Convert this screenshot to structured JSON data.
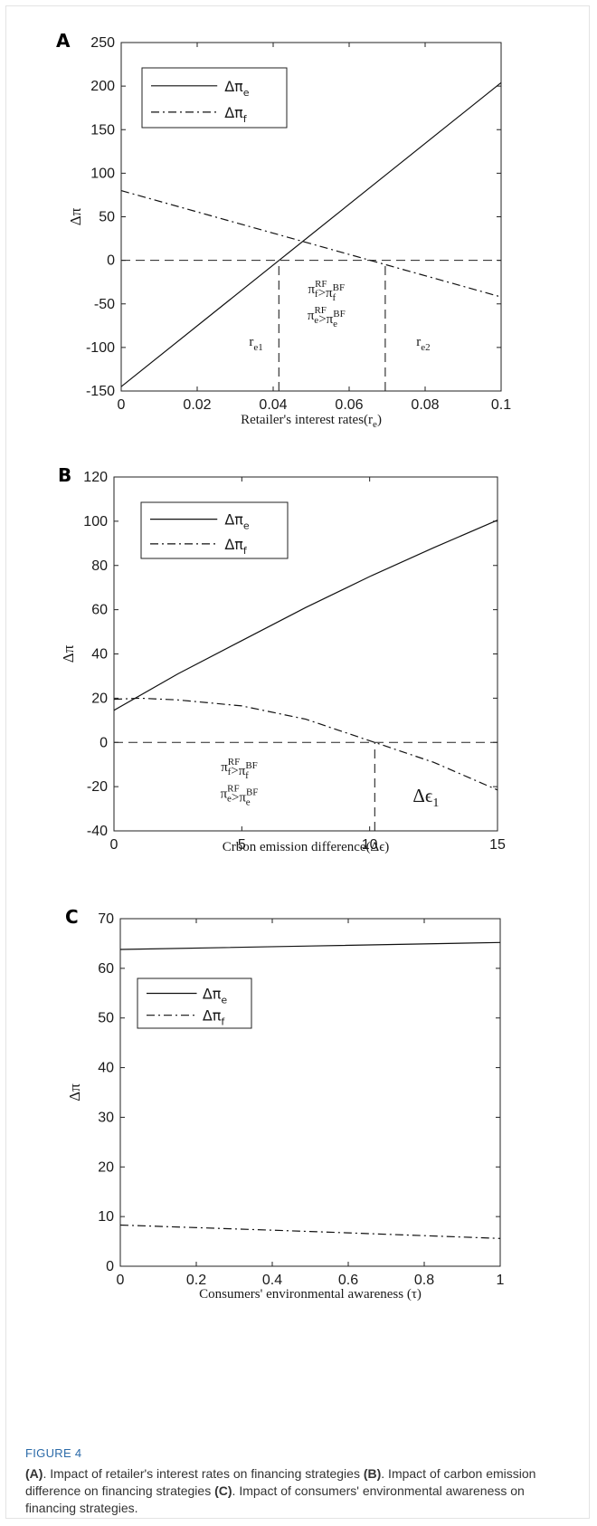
{
  "figure": {
    "label": "FIGURE 4",
    "caption_parts": [
      {
        "text": "(A)",
        "bold": true
      },
      {
        "text": ". Impact of retailer's interest rates on financing strategies ",
        "bold": false
      },
      {
        "text": "(B)",
        "bold": true
      },
      {
        "text": ". Impact of carbon emission difference on financing strategies ",
        "bold": false
      },
      {
        "text": "(C)",
        "bold": true
      },
      {
        "text": ". Impact of consumers' environmental awareness on financing strategies.",
        "bold": false
      }
    ]
  },
  "chart_data": [
    {
      "panel": "A",
      "type": "line",
      "xlabel": "Retailer's interest rates(r",
      "xlabel_sub": "e",
      "xlabel_tail": ")",
      "ylabel": "Δπ",
      "xlim": [
        0,
        0.1
      ],
      "ylim": [
        -150,
        250
      ],
      "xticks": [
        0,
        0.02,
        0.04,
        0.06,
        0.08,
        0.1
      ],
      "xtick_labels": [
        "0",
        "0.02",
        "0.04",
        "0.06",
        "0.08",
        "0.1"
      ],
      "yticks": [
        -150,
        -100,
        -50,
        0,
        50,
        100,
        150,
        200,
        250
      ],
      "ytick_labels": [
        "-150",
        "-100",
        "-50",
        "0",
        "50",
        "100",
        "150",
        "200",
        "250"
      ],
      "legend_position": "top-left",
      "series": [
        {
          "name": "Δπ",
          "name_sub": "e",
          "style": "solid",
          "x": [
            0,
            0.1
          ],
          "y": [
            -145,
            204
          ]
        },
        {
          "name": "Δπ",
          "name_sub": "f",
          "style": "dashdot",
          "x": [
            0,
            0.1
          ],
          "y": [
            80,
            -42
          ]
        }
      ],
      "reference_lines": [
        {
          "orientation": "horizontal",
          "y": 0,
          "style": "dashed"
        },
        {
          "orientation": "vertical",
          "x": 0.0415,
          "y_from": -150,
          "y_to": 0,
          "style": "dashed"
        },
        {
          "orientation": "vertical",
          "x": 0.0695,
          "y_from": -150,
          "y_to": 0,
          "style": "dashed"
        }
      ],
      "annotations": [
        {
          "main": "r",
          "sub": "e1",
          "x": 0.0355,
          "y": -98,
          "size": "small"
        },
        {
          "main": "r",
          "sub": "e2",
          "x": 0.0795,
          "y": -98,
          "size": "small"
        },
        {
          "main": "π",
          "sub": "f",
          "sup": "RF",
          "rel": ">",
          "main2": "π",
          "sub2": "f",
          "sup2": "BF",
          "x": 0.054,
          "y": -38,
          "size": "small"
        },
        {
          "main": "π",
          "sub": "e",
          "sup": "RF",
          "rel": ">",
          "main2": "π",
          "sub2": "e",
          "sup2": "BF",
          "x": 0.054,
          "y": -68,
          "size": "small"
        }
      ]
    },
    {
      "panel": "B",
      "type": "line",
      "xlabel": "Crbon emission difference(Δϵ)",
      "ylabel": "Δπ",
      "xlim": [
        0,
        15
      ],
      "ylim": [
        -40,
        120
      ],
      "xticks": [
        0,
        5,
        10,
        15
      ],
      "xtick_labels": [
        "0",
        "5",
        "10",
        "15"
      ],
      "yticks": [
        -40,
        -20,
        0,
        20,
        40,
        60,
        80,
        100,
        120
      ],
      "ytick_labels": [
        "-40",
        "-20",
        "0",
        "20",
        "40",
        "60",
        "80",
        "100",
        "120"
      ],
      "legend_position": "top-left",
      "series": [
        {
          "name": "Δπ",
          "name_sub": "e",
          "style": "solid",
          "x": [
            0,
            2.5,
            5,
            7.5,
            10,
            12.5,
            15
          ],
          "y": [
            14.5,
            31,
            46,
            61,
            75,
            88,
            100.5
          ]
        },
        {
          "name": "Δπ",
          "name_sub": "f",
          "style": "dashdot",
          "x": [
            0,
            1,
            2.5,
            5,
            7.5,
            10.2,
            12.5,
            15
          ],
          "y": [
            19.5,
            20,
            19.2,
            16.5,
            10.5,
            0,
            -9,
            -21.5
          ]
        }
      ],
      "reference_lines": [
        {
          "orientation": "horizontal",
          "y": 0,
          "style": "dashed"
        },
        {
          "orientation": "vertical",
          "x": 10.2,
          "y_from": -40,
          "y_to": 0,
          "style": "dashed"
        }
      ],
      "annotations": [
        {
          "main": "π",
          "sub": "f",
          "sup": "RF",
          "rel": ">",
          "main2": "π",
          "sub2": "f",
          "sup2": "BF",
          "x": 4.9,
          "y": -13,
          "size": "small"
        },
        {
          "main": "π",
          "sub": "e",
          "sup": "RF",
          "rel": ">",
          "main2": "π",
          "sub2": "e",
          "sup2": "BF",
          "x": 4.9,
          "y": -25,
          "size": "small"
        },
        {
          "main": "Δϵ",
          "sub": "1",
          "x": 12.2,
          "y": -27,
          "size": "large"
        }
      ]
    },
    {
      "panel": "C",
      "type": "line",
      "xlabel": "Consumers' environmental awareness (τ)",
      "ylabel": "Δπ",
      "xlim": [
        0,
        1
      ],
      "ylim": [
        0,
        70
      ],
      "xticks": [
        0,
        0.2,
        0.4,
        0.6,
        0.8,
        1
      ],
      "xtick_labels": [
        "0",
        "0.2",
        "0.4",
        "0.6",
        "0.8",
        "1"
      ],
      "yticks": [
        0,
        10,
        20,
        30,
        40,
        50,
        60,
        70
      ],
      "ytick_labels": [
        "0",
        "10",
        "20",
        "30",
        "40",
        "50",
        "60",
        "70"
      ],
      "legend_position": "upper-left",
      "series": [
        {
          "name": "Δπ",
          "name_sub": "e",
          "style": "solid",
          "x": [
            0,
            0.5,
            1
          ],
          "y": [
            63.8,
            64.5,
            65.2
          ]
        },
        {
          "name": "Δπ",
          "name_sub": "f",
          "style": "dashdot",
          "x": [
            0,
            0.5,
            1
          ],
          "y": [
            8.3,
            7.0,
            5.6
          ]
        }
      ],
      "reference_lines": [],
      "annotations": []
    }
  ]
}
